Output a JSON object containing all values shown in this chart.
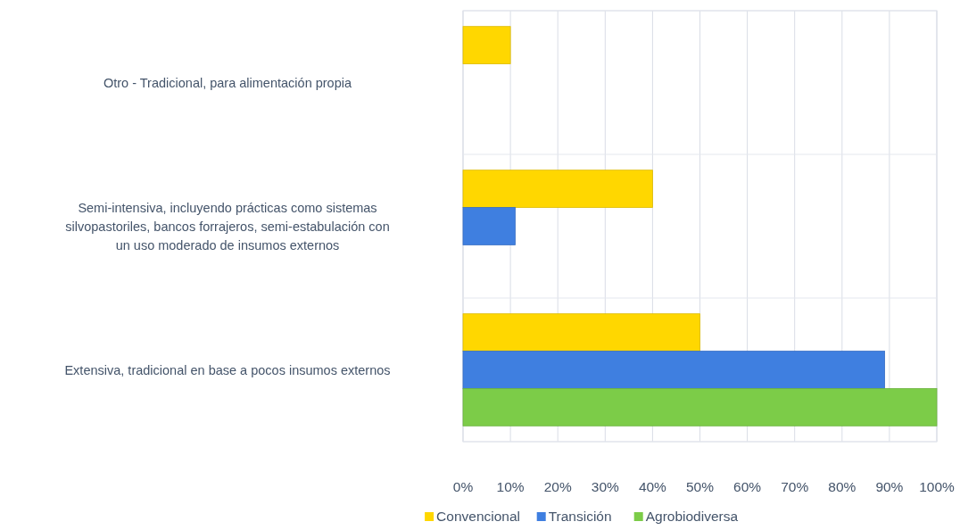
{
  "chart_data": {
    "type": "bar",
    "orientation": "horizontal",
    "categories": [
      "Otro - Tradicional, para alimentación propia",
      "Semi-intensiva, incluyendo prácticas como sistemas silvopastoriles, bancos forrajeros, semi-estabulación con un uso moderado de insumos externos",
      "Extensiva, tradicional en base a pocos insumos externos"
    ],
    "series": [
      {
        "name": "Convencional",
        "color": "#ffd700",
        "values": [
          10,
          40,
          50
        ]
      },
      {
        "name": "Transición",
        "color": "#3f7fe0",
        "values": [
          0,
          11,
          89
        ]
      },
      {
        "name": "Agrobiodiversa",
        "color": "#7ccc48",
        "values": [
          0,
          0,
          100
        ]
      }
    ],
    "xlim": [
      0,
      100
    ],
    "xticks": [
      {
        "value": 0,
        "label": "0%"
      },
      {
        "value": 10,
        "label": "10%"
      },
      {
        "value": 20,
        "label": "20%"
      },
      {
        "value": 30,
        "label": "30%"
      },
      {
        "value": 40,
        "label": "40%"
      },
      {
        "value": 50,
        "label": "50%"
      },
      {
        "value": 60,
        "label": "60%"
      },
      {
        "value": 70,
        "label": "70%"
      },
      {
        "value": 80,
        "label": "80%"
      },
      {
        "value": 90,
        "label": "90%"
      },
      {
        "value": 100,
        "label": "100%"
      }
    ],
    "grid": true,
    "legend": "bottom"
  }
}
